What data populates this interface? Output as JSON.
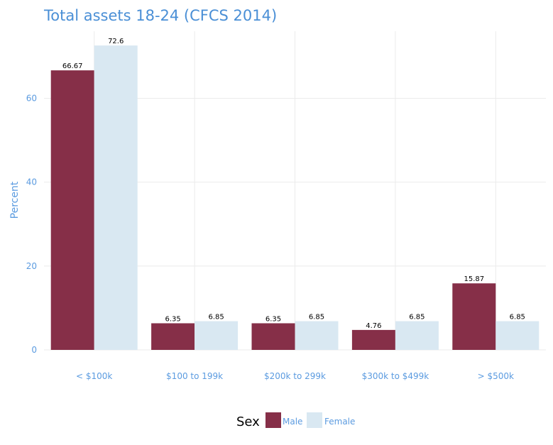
{
  "chart_data": {
    "type": "bar",
    "title": "Total assets 18-24 (CFCS 2014)",
    "xlabel": "",
    "ylabel": "Percent",
    "categories": [
      "< $100k",
      "$100 to 199k",
      "$200k to 299k",
      "$300k to $499k",
      "> $500k"
    ],
    "series": [
      {
        "name": "Male",
        "color": "#862f48",
        "values": [
          66.67,
          6.35,
          6.35,
          4.76,
          15.87
        ]
      },
      {
        "name": "Female",
        "color": "#d9e8f2",
        "values": [
          72.6,
          6.85,
          6.85,
          6.85,
          6.85
        ]
      }
    ],
    "data_labels": [
      [
        "66.67",
        "6.35",
        "6.35",
        "4.76",
        "15.87"
      ],
      [
        "72.6",
        "6.85",
        "6.85",
        "6.85",
        "6.85"
      ]
    ],
    "yticks": [
      0,
      20,
      40,
      60
    ],
    "ylim": [
      0,
      76
    ],
    "legend": {
      "title": "Sex",
      "position": "bottom"
    },
    "grid": true
  }
}
